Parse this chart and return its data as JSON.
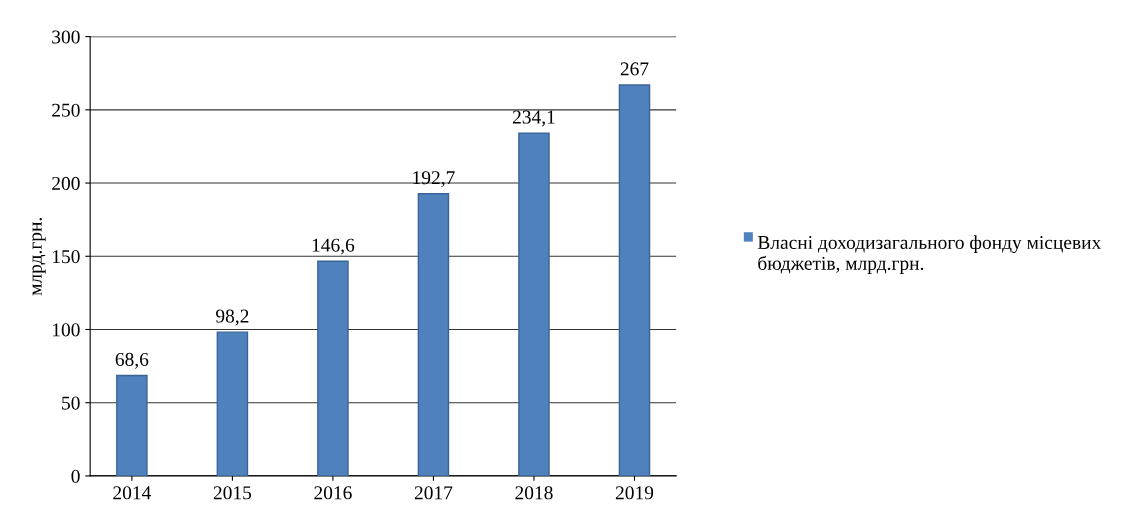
{
  "chart_data": {
    "type": "bar",
    "ylabel": "млрд.грн.",
    "categories": [
      "2014",
      "2015",
      "2016",
      "2017",
      "2018",
      "2019"
    ],
    "series": [
      {
        "name": "Власні доходизагального фонду місцевих бюджетів, млрд.грн.",
        "color": "#4f81bd",
        "values": [
          68.6,
          98.2,
          146.6,
          192.7,
          234.1,
          267
        ],
        "value_labels": [
          "68,6",
          "98,2",
          "146,6",
          "192,7",
          "234,1",
          "267"
        ]
      }
    ],
    "ylim": [
      0,
      300
    ],
    "yticks": [
      0,
      50,
      100,
      150,
      200,
      250,
      300
    ],
    "grid": "y",
    "legend": "right"
  }
}
